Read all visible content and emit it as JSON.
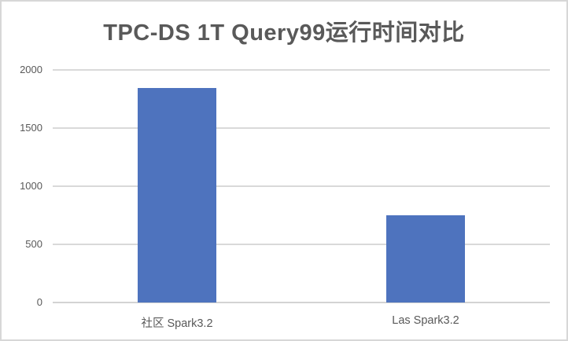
{
  "chart_data": {
    "type": "bar",
    "title": "TPC-DS 1T Query99运行时间对比",
    "categories": [
      "社区 Spark3.2",
      "Las Spark3.2"
    ],
    "values": [
      1845,
      750
    ],
    "xlabel": "",
    "ylabel": "",
    "ylim": [
      0,
      2000
    ],
    "yticks": [
      0,
      500,
      1000,
      1500,
      2000
    ],
    "grid": true,
    "legend": false,
    "bar_color": "#4e73be",
    "gridline_color": "#d9d9d9",
    "title_color": "#595959",
    "tick_label_color": "#595959",
    "background_color": "#ffffff",
    "border_color": "#d7d7d7"
  }
}
